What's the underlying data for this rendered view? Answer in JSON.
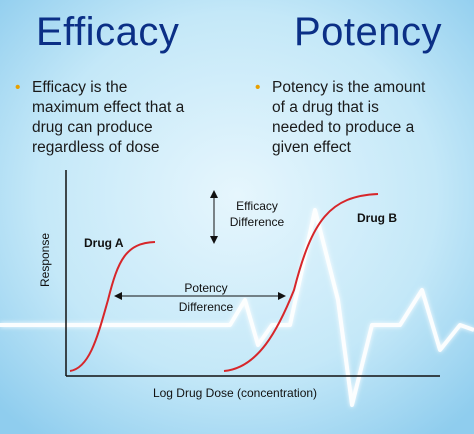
{
  "colors": {
    "background": "#bfe6f7",
    "heading": "#0b2f86",
    "bullet_dot": "#e8a000",
    "curve": "#d7262a",
    "axis": "#111111",
    "heartbeat": "#ffffff"
  },
  "efficacy": {
    "heading": "Efficacy",
    "bullet": "•",
    "lines": [
      "Efficacy is the",
      "maximum effect that a",
      "drug can produce",
      "regardless of dose"
    ]
  },
  "potency": {
    "heading": "Potency",
    "bullet": "•",
    "lines": [
      "Potency is the amount",
      "of a drug that is",
      "needed to produce a",
      "given effect"
    ]
  },
  "graph": {
    "y_label": "Response",
    "x_label": "Log Drug Dose (concentration)",
    "drug_a_label": "Drug A",
    "drug_b_label": "Drug B",
    "efficacy_difference": [
      "Efficacy",
      "Difference"
    ],
    "potency_difference": [
      "Potency",
      "Difference"
    ]
  }
}
